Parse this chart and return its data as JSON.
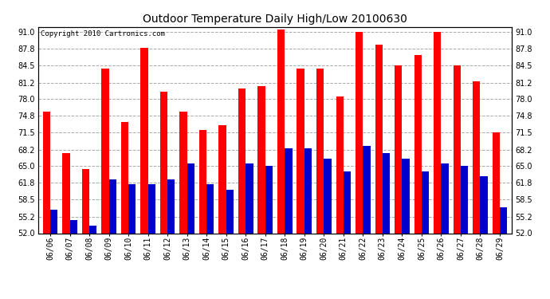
{
  "title": "Outdoor Temperature Daily High/Low 20100630",
  "copyright_text": "Copyright 2010 Cartronics.com",
  "dates": [
    "06/06",
    "06/07",
    "06/08",
    "06/09",
    "06/10",
    "06/11",
    "06/12",
    "06/13",
    "06/14",
    "06/15",
    "06/16",
    "06/17",
    "06/18",
    "06/19",
    "06/20",
    "06/21",
    "06/22",
    "06/23",
    "06/24",
    "06/25",
    "06/26",
    "06/27",
    "06/28",
    "06/29"
  ],
  "highs": [
    75.5,
    67.5,
    64.5,
    84.0,
    73.5,
    88.0,
    79.5,
    75.5,
    72.0,
    73.0,
    80.0,
    80.5,
    91.5,
    84.0,
    84.0,
    78.5,
    91.0,
    88.5,
    84.5,
    86.5,
    91.0,
    84.5,
    81.5,
    71.5
  ],
  "lows": [
    56.5,
    54.5,
    53.5,
    62.5,
    61.5,
    61.5,
    62.5,
    65.5,
    61.5,
    60.5,
    65.5,
    65.0,
    68.5,
    68.5,
    66.5,
    64.0,
    69.0,
    67.5,
    66.5,
    64.0,
    65.5,
    65.0,
    63.0,
    57.0
  ],
  "high_color": "#ff0000",
  "low_color": "#0000cc",
  "background_color": "#ffffff",
  "ylim_min": 52.0,
  "ylim_max": 92.0,
  "yticks": [
    52.0,
    55.2,
    58.5,
    61.8,
    65.0,
    68.2,
    71.5,
    74.8,
    78.0,
    81.2,
    84.5,
    87.8,
    91.0
  ],
  "grid_color": "#aaaaaa",
  "bar_width": 0.38,
  "title_fontsize": 10,
  "tick_fontsize": 7,
  "copyright_fontsize": 6.5
}
